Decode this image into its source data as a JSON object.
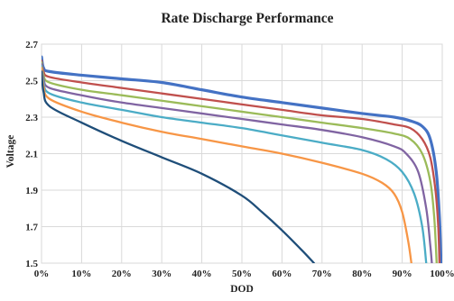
{
  "chart_data": {
    "type": "line",
    "title": "Rate Discharge Performance",
    "xlabel": "DOD",
    "ylabel": "Voltage",
    "xlim": [
      0,
      100
    ],
    "ylim": [
      1.5,
      2.7
    ],
    "x_ticks": [
      "0%",
      "10%",
      "20%",
      "30%",
      "40%",
      "50%",
      "60%",
      "70%",
      "80%",
      "90%",
      "100%"
    ],
    "y_ticks": [
      "1.5",
      "1.7",
      "1.9",
      "2.1",
      "2.3",
      "2.5",
      "2.7"
    ],
    "grid": true,
    "legend": "none",
    "series": [
      {
        "color": "#4472c4",
        "points": [
          [
            0,
            2.63
          ],
          [
            0.5,
            2.57
          ],
          [
            2,
            2.55
          ],
          [
            10,
            2.53
          ],
          [
            20,
            2.51
          ],
          [
            30,
            2.49
          ],
          [
            40,
            2.45
          ],
          [
            50,
            2.41
          ],
          [
            60,
            2.38
          ],
          [
            70,
            2.35
          ],
          [
            80,
            2.32
          ],
          [
            88,
            2.3
          ],
          [
            92,
            2.28
          ],
          [
            95,
            2.25
          ],
          [
            97,
            2.18
          ],
          [
            98.5,
            2.0
          ],
          [
            99.3,
            1.75
          ],
          [
            99.7,
            1.5
          ]
        ]
      },
      {
        "color": "#c0504d",
        "points": [
          [
            0,
            2.61
          ],
          [
            0.5,
            2.55
          ],
          [
            2,
            2.52
          ],
          [
            10,
            2.49
          ],
          [
            20,
            2.46
          ],
          [
            30,
            2.43
          ],
          [
            40,
            2.4
          ],
          [
            50,
            2.37
          ],
          [
            60,
            2.34
          ],
          [
            70,
            2.31
          ],
          [
            80,
            2.29
          ],
          [
            88,
            2.26
          ],
          [
            92,
            2.24
          ],
          [
            95,
            2.18
          ],
          [
            97,
            2.08
          ],
          [
            98.3,
            1.9
          ],
          [
            99,
            1.7
          ],
          [
            99.3,
            1.5
          ]
        ]
      },
      {
        "color": "#9bbb59",
        "points": [
          [
            0,
            2.6
          ],
          [
            0.5,
            2.53
          ],
          [
            2,
            2.49
          ],
          [
            10,
            2.45
          ],
          [
            20,
            2.42
          ],
          [
            30,
            2.39
          ],
          [
            40,
            2.36
          ],
          [
            50,
            2.33
          ],
          [
            60,
            2.3
          ],
          [
            70,
            2.27
          ],
          [
            80,
            2.24
          ],
          [
            88,
            2.21
          ],
          [
            92,
            2.18
          ],
          [
            95,
            2.1
          ],
          [
            97,
            1.95
          ],
          [
            98,
            1.75
          ],
          [
            98.6,
            1.5
          ]
        ]
      },
      {
        "color": "#8064a2",
        "points": [
          [
            0,
            2.59
          ],
          [
            0.5,
            2.51
          ],
          [
            2,
            2.46
          ],
          [
            10,
            2.42
          ],
          [
            20,
            2.38
          ],
          [
            30,
            2.35
          ],
          [
            40,
            2.32
          ],
          [
            50,
            2.29
          ],
          [
            60,
            2.26
          ],
          [
            70,
            2.23
          ],
          [
            80,
            2.19
          ],
          [
            88,
            2.14
          ],
          [
            91,
            2.1
          ],
          [
            94,
            2.0
          ],
          [
            96,
            1.8
          ],
          [
            97,
            1.6
          ],
          [
            97.4,
            1.5
          ]
        ]
      },
      {
        "color": "#4bacc6",
        "points": [
          [
            0,
            2.58
          ],
          [
            0.5,
            2.49
          ],
          [
            2,
            2.43
          ],
          [
            10,
            2.38
          ],
          [
            20,
            2.34
          ],
          [
            30,
            2.3
          ],
          [
            40,
            2.27
          ],
          [
            50,
            2.24
          ],
          [
            60,
            2.2
          ],
          [
            70,
            2.16
          ],
          [
            80,
            2.12
          ],
          [
            86,
            2.07
          ],
          [
            90,
            2.0
          ],
          [
            93,
            1.88
          ],
          [
            95,
            1.7
          ],
          [
            96,
            1.5
          ]
        ]
      },
      {
        "color": "#f79646",
        "points": [
          [
            0,
            2.57
          ],
          [
            0.5,
            2.47
          ],
          [
            2,
            2.4
          ],
          [
            10,
            2.33
          ],
          [
            20,
            2.27
          ],
          [
            30,
            2.22
          ],
          [
            40,
            2.18
          ],
          [
            50,
            2.14
          ],
          [
            60,
            2.1
          ],
          [
            70,
            2.05
          ],
          [
            80,
            1.99
          ],
          [
            85,
            1.94
          ],
          [
            88,
            1.88
          ],
          [
            90,
            1.78
          ],
          [
            91.5,
            1.62
          ],
          [
            92.3,
            1.5
          ]
        ]
      },
      {
        "color": "#1f4e79",
        "points": [
          [
            0,
            2.55
          ],
          [
            0.5,
            2.44
          ],
          [
            2,
            2.36
          ],
          [
            10,
            2.27
          ],
          [
            20,
            2.17
          ],
          [
            30,
            2.08
          ],
          [
            40,
            1.99
          ],
          [
            50,
            1.87
          ],
          [
            55,
            1.78
          ],
          [
            60,
            1.68
          ],
          [
            65,
            1.57
          ],
          [
            68,
            1.5
          ]
        ]
      }
    ]
  }
}
